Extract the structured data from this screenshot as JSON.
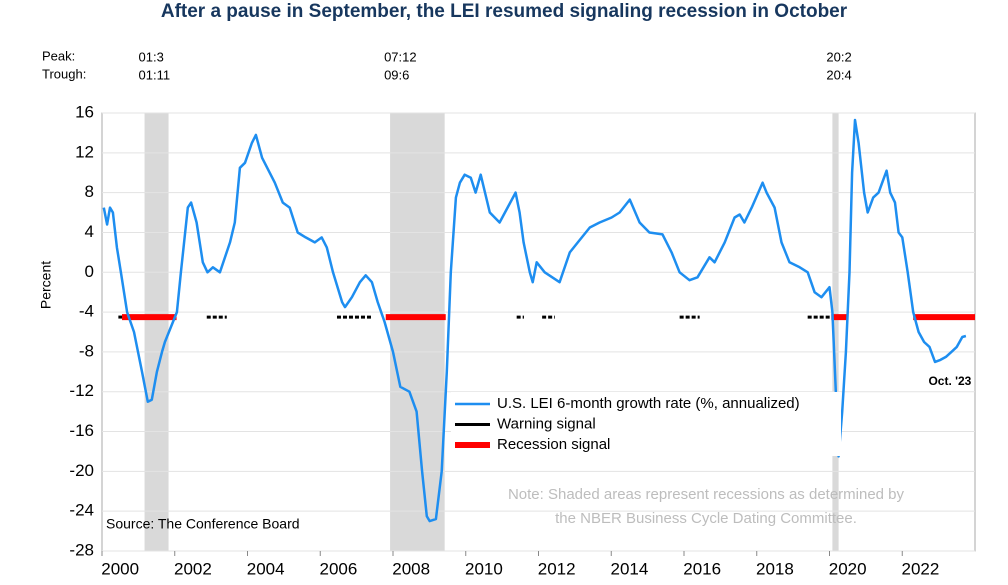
{
  "chart_data": {
    "type": "line",
    "title": "After a pause in September, the LEI resumed signaling recession in October",
    "ylabel": "Percent",
    "xlim": [
      2000,
      2024
    ],
    "xticks": [
      2000,
      2002,
      2004,
      2006,
      2008,
      2010,
      2012,
      2014,
      2016,
      2018,
      2020,
      2022
    ],
    "ylim": [
      -28,
      16
    ],
    "yticks": [
      -28,
      -24,
      -20,
      -16,
      -12,
      -8,
      -4,
      0,
      4,
      8,
      12,
      16
    ],
    "grid": true,
    "series": [
      {
        "name": "U.S. LEI 6-month growth rate (%, annualized)",
        "color": "#1e8ef0",
        "x": [
          2000.05,
          2000.14,
          2000.22,
          2000.3,
          2000.41,
          2000.52,
          2000.69,
          2000.88,
          2001.1,
          2001.26,
          2001.37,
          2001.51,
          2001.65,
          2001.73,
          2002.06,
          2002.17,
          2002.36,
          2002.45,
          2002.6,
          2002.77,
          2002.9,
          2003.05,
          2003.24,
          2003.52,
          2003.65,
          2003.79,
          2003.93,
          2004.12,
          2004.23,
          2004.4,
          2004.75,
          2004.97,
          2005.16,
          2005.38,
          2005.6,
          2005.85,
          2006.04,
          2006.18,
          2006.35,
          2006.6,
          2006.68,
          2006.87,
          2007.09,
          2007.25,
          2007.42,
          2007.58,
          2007.77,
          2008.0,
          2008.2,
          2008.45,
          2008.65,
          2008.8,
          2008.93,
          2009.01,
          2009.18,
          2009.34,
          2009.48,
          2009.59,
          2009.73,
          2009.84,
          2009.97,
          2010.14,
          2010.27,
          2010.41,
          2010.66,
          2010.93,
          2011.37,
          2011.48,
          2011.59,
          2011.76,
          2011.84,
          2011.95,
          2012.17,
          2012.58,
          2012.86,
          2013.08,
          2013.41,
          2013.68,
          2014.01,
          2014.23,
          2014.51,
          2014.78,
          2015.05,
          2015.41,
          2015.66,
          2015.88,
          2016.15,
          2016.37,
          2016.7,
          2016.84,
          2017.12,
          2017.39,
          2017.53,
          2017.66,
          2017.86,
          2018.16,
          2018.27,
          2018.49,
          2018.68,
          2018.9,
          2019.18,
          2019.4,
          2019.59,
          2019.78,
          2020.0,
          2020.08,
          2020.25,
          2020.35,
          2020.45,
          2020.55,
          2020.62,
          2020.7,
          2020.8,
          2020.95,
          2021.05,
          2021.2,
          2021.35,
          2021.45,
          2021.57,
          2021.67,
          2021.8,
          2021.9,
          2022.0,
          2022.15,
          2022.3,
          2022.45,
          2022.6,
          2022.75,
          2022.9,
          2023.05,
          2023.2,
          2023.35,
          2023.5,
          2023.65,
          2023.75
        ],
        "values": [
          6.5,
          4.8,
          6.5,
          6,
          2.5,
          0,
          -4,
          -6,
          -10,
          -13,
          -12.8,
          -10,
          -8,
          -7,
          -4,
          0,
          6.5,
          7,
          5,
          1,
          0,
          0.5,
          0,
          3,
          5,
          10.5,
          11,
          13,
          13.8,
          11.5,
          9,
          7,
          6.5,
          4,
          3.5,
          3,
          3.5,
          2.5,
          0,
          -3,
          -3.5,
          -2.5,
          -1,
          -0.3,
          -1,
          -3,
          -5,
          -8,
          -11.5,
          -12,
          -14,
          -20,
          -24.5,
          -25,
          -24.8,
          -20,
          -10,
          0,
          7.5,
          9,
          9.8,
          9.5,
          8,
          9.8,
          6,
          5,
          8,
          6,
          3,
          0,
          -1,
          1,
          0,
          -1,
          2,
          3,
          4.5,
          5,
          5.5,
          6,
          7.3,
          5,
          4,
          3.8,
          2,
          0,
          -0.8,
          -0.5,
          1.5,
          1,
          3,
          5.5,
          5.8,
          5,
          6.5,
          9,
          8,
          6.5,
          3,
          1,
          0.5,
          0,
          -2,
          -2.5,
          -1.5,
          -4,
          -18.5,
          -14,
          -8,
          0,
          10,
          15.3,
          13,
          8,
          6,
          7.5,
          8,
          9,
          10.2,
          8,
          7,
          4,
          3.5,
          0,
          -4,
          -6,
          -7,
          -7.5,
          -9,
          -8.8,
          -8.5,
          -8,
          -7.5,
          -6.5,
          -6.4
        ]
      }
    ],
    "signals": [
      {
        "name": "Warning signal",
        "color": "#000000",
        "level": -4.5,
        "ranges": [
          [
            2000.45,
            2000.6
          ],
          [
            2002.88,
            2003.43
          ],
          [
            2006.46,
            2007.42
          ],
          [
            2011.4,
            2011.6
          ],
          [
            2012.1,
            2012.45
          ],
          [
            2015.88,
            2016.43
          ],
          [
            2019.4,
            2020.1
          ]
        ]
      },
      {
        "name": "Recession signal",
        "color": "#ff0000",
        "level": -4.5,
        "ranges": [
          [
            2000.55,
            2002.05
          ],
          [
            2007.8,
            2009.45
          ],
          [
            2020.05,
            2020.5
          ],
          [
            2022.3,
            2024
          ]
        ]
      }
    ],
    "recessions": [
      {
        "peak": "01:3",
        "trough": "01:11",
        "start": 2001.17,
        "end": 2001.83
      },
      {
        "peak": "07:12",
        "trough": "09:6",
        "start": 2007.92,
        "end": 2009.42
      },
      {
        "peak": "20:2",
        "trough": "20:4",
        "start": 2020.08,
        "end": 2020.25
      }
    ],
    "peak_label": "Peak:",
    "trough_label": "Trough:",
    "annotation": "Oct. '23",
    "source": "Source: The Conference Board",
    "note": [
      "Note: Shaded areas represent recessions as determined by",
      "the NBER Business Cycle Dating Committee."
    ]
  }
}
